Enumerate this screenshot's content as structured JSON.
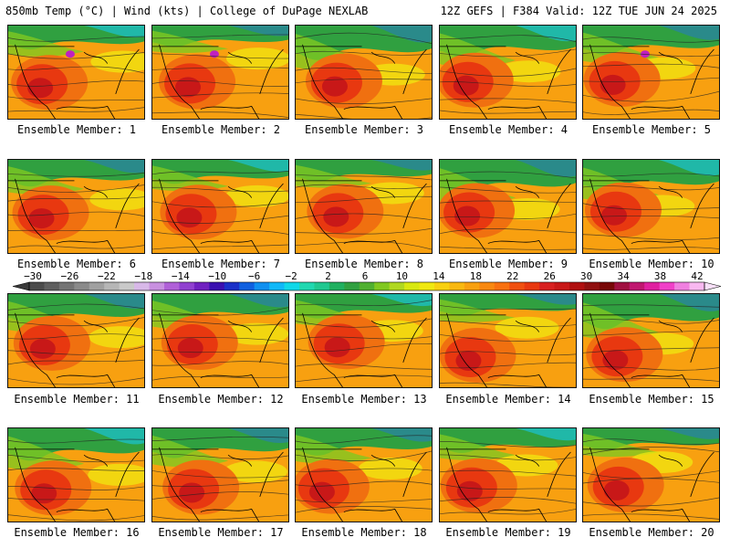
{
  "header": {
    "left": "850mb Temp (°C) | Wind (kts) | College of DuPage NEXLAB",
    "right": "12Z GEFS | F384 Valid: 12Z TUE JUN 24 2025"
  },
  "panels": [
    {
      "label": "Ensemble Member: 1"
    },
    {
      "label": "Ensemble Member: 2"
    },
    {
      "label": "Ensemble Member: 3"
    },
    {
      "label": "Ensemble Member: 4"
    },
    {
      "label": "Ensemble Member: 5"
    },
    {
      "label": "Ensemble Member: 6"
    },
    {
      "label": "Ensemble Member: 7"
    },
    {
      "label": "Ensemble Member: 8"
    },
    {
      "label": "Ensemble Member: 9"
    },
    {
      "label": "Ensemble Member: 10"
    },
    {
      "label": "Ensemble Member: 11"
    },
    {
      "label": "Ensemble Member: 12"
    },
    {
      "label": "Ensemble Member: 13"
    },
    {
      "label": "Ensemble Member: 14"
    },
    {
      "label": "Ensemble Member: 15"
    },
    {
      "label": "Ensemble Member: 16"
    },
    {
      "label": "Ensemble Member: 17"
    },
    {
      "label": "Ensemble Member: 18"
    },
    {
      "label": "Ensemble Member: 19"
    },
    {
      "label": "Ensemble Member: 20"
    }
  ],
  "colorbar": {
    "tick_labels": [
      "-30",
      "-26",
      "-22",
      "-18",
      "-14",
      "-10",
      "-6",
      "-2",
      "2",
      "6",
      "10",
      "14",
      "18",
      "22",
      "26",
      "30",
      "34",
      "38",
      "42"
    ],
    "colors": [
      "#4b4b4b",
      "#5f5f5f",
      "#747474",
      "#8a8a8a",
      "#a0a0a0",
      "#b6b6b6",
      "#c9c9c9",
      "#d8b8e8",
      "#c890e0",
      "#b060d8",
      "#9040d0",
      "#7020c0",
      "#3a10b0",
      "#1a30c8",
      "#1060e0",
      "#1090f0",
      "#10b8f8",
      "#10d8e8",
      "#20d8b0",
      "#20c890",
      "#20b060",
      "#30a040",
      "#50b030",
      "#80c820",
      "#b0d820",
      "#d8e810",
      "#f0e810",
      "#f8d010",
      "#f8b810",
      "#f8a010",
      "#f88810",
      "#f87010",
      "#f05010",
      "#e83810",
      "#d82020",
      "#c81818",
      "#b01010",
      "#901010",
      "#780808",
      "#a01040",
      "#c01870",
      "#e020a0",
      "#f040c8",
      "#f080e0",
      "#f8b8f0"
    ]
  },
  "panel_colors": {
    "cold": "#2a8a8a",
    "teal": "#20b8a8",
    "green": "#30a040",
    "lightgreen": "#80c820",
    "yellow": "#f0e810",
    "orange": "#f8a010",
    "deeporange": "#f07010",
    "red": "#e83810",
    "darkred": "#c81818",
    "magenta": "#c020c0"
  }
}
